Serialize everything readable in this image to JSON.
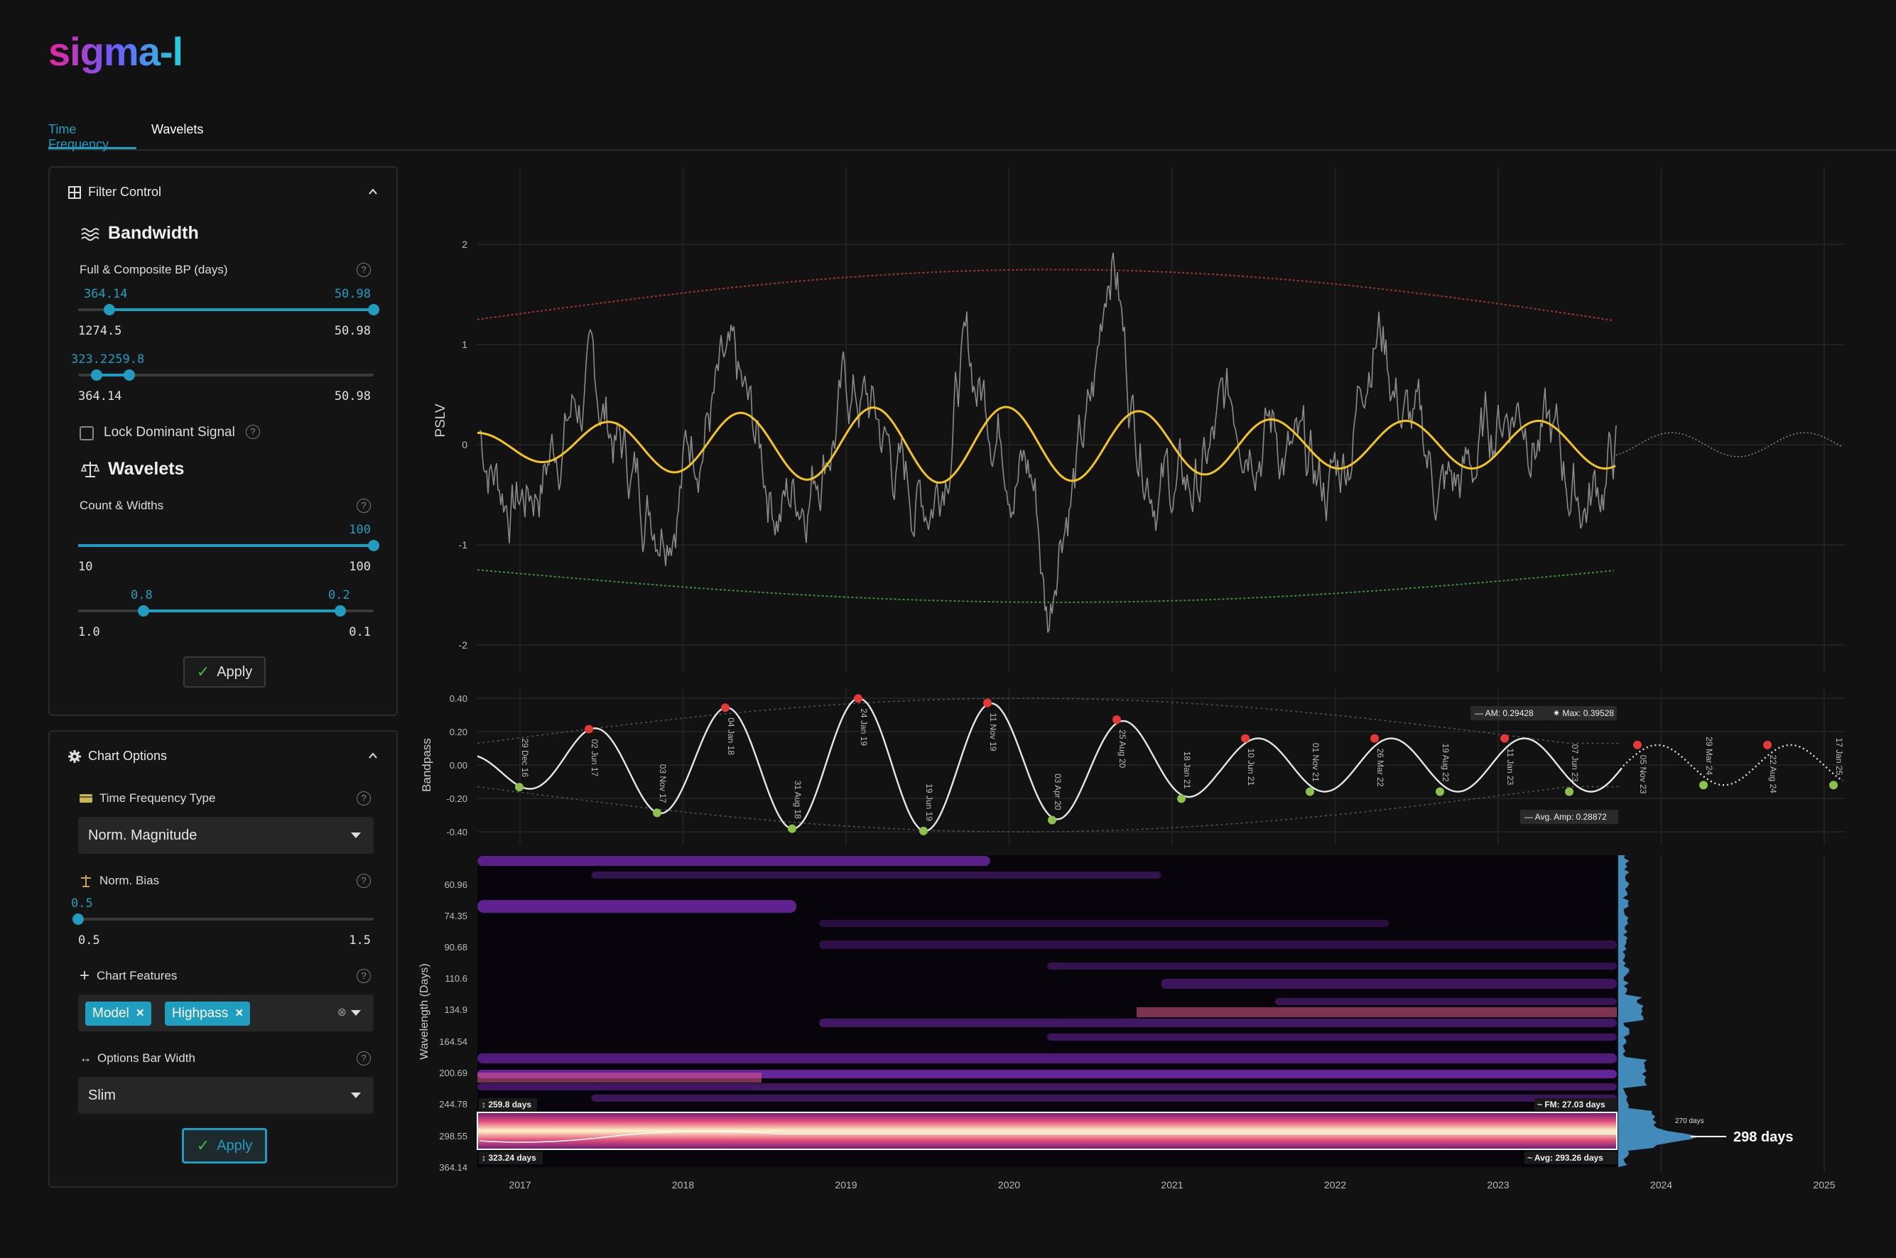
{
  "app": {
    "logo": "sigma-l"
  },
  "tabs": [
    {
      "label": "Time Frequency",
      "active": true
    },
    {
      "label": "Wavelets",
      "active": false
    }
  ],
  "filter_control": {
    "title": "Filter Control",
    "bandwidth": {
      "title": "Bandwidth",
      "label": "Full & Composite BP (days)",
      "slider1": {
        "val_left": "364.14",
        "val_right": "50.98",
        "min": "1274.5",
        "max": "50.98"
      },
      "slider2": {
        "val_left": "323.2",
        "val_right": "259.8",
        "min": "364.14",
        "max": "50.98"
      },
      "lock_label": "Lock Dominant Signal"
    },
    "wavelets": {
      "title": "Wavelets",
      "label": "Count & Widths",
      "slider1": {
        "val": "100",
        "min": "10",
        "max": "100"
      },
      "slider2": {
        "val_left": "0.8",
        "val_right": "0.2",
        "min": "1.0",
        "max": "0.1"
      }
    },
    "apply_label": "Apply"
  },
  "chart_options": {
    "title": "Chart Options",
    "tf_type_label": "Time Frequency Type",
    "tf_type_value": "Norm. Magnitude",
    "norm_bias_label": "Norm. Bias",
    "norm_bias": {
      "val": "0.5",
      "min": "0.5",
      "max": "1.5"
    },
    "features_label": "Chart Features",
    "features": [
      "Model",
      "Highpass"
    ],
    "bar_width_label": "Options Bar Width",
    "bar_width_value": "Slim",
    "apply_label": "Apply"
  },
  "colors": {
    "accent": "#1f9ec0",
    "model": "#f5c518",
    "peak": "#e53935",
    "trough": "#8bc34a",
    "upper_env": "#a33434",
    "lower_env": "#3f8f3f"
  },
  "chart_data": [
    {
      "type": "line",
      "ylabel": "PSLV",
      "yticks": [
        "2",
        "1",
        "0",
        "-1",
        "-2"
      ],
      "ylim": [
        -2.5,
        2.7
      ],
      "series": []
    },
    {
      "type": "line",
      "ylabel": "Bandpass",
      "yticks": [
        "0.40",
        "0.20",
        "0.00",
        "-0.20",
        "-0.40"
      ],
      "ylim": [
        -0.45,
        0.45
      ],
      "peaks": [
        "04 Jan 18",
        "24 Jan 19",
        "11 Nov 19",
        "25 Aug 20",
        "10 Jun 21",
        "26 Mar 22",
        "11 Jan 23",
        "05 Nov 23",
        "22 Aug 24"
      ],
      "troughs": [
        "29 Dec 16",
        "03 Nov 17",
        "31 Aug 18",
        "19 Jun 19",
        "03 Apr 20",
        "18 Jan 21",
        "01 Nov 21",
        "19 Aug 22",
        "07 Jun 23",
        "29 Mar 24",
        "17 Jan 25"
      ],
      "other_labels": [
        "02 Jun 17"
      ],
      "annotations": {
        "am": "AM: 0.29428",
        "max": "Max: 0.39528",
        "avg_amp": "Avg. Amp: 0.28872"
      }
    },
    {
      "type": "heatmap",
      "ylabel": "Wavelength (Days)",
      "yticks": [
        "60.96",
        "74.35",
        "90.68",
        "110.6",
        "134.9",
        "164.54",
        "200.69",
        "244.78",
        "298.55",
        "364.14"
      ],
      "xticks": [
        "2017",
        "2018",
        "2019",
        "2020",
        "2021",
        "2022",
        "2023",
        "2024",
        "2025"
      ],
      "band": {
        "top_label": "259.8 days",
        "bottom_label": "323.24 days",
        "fm_label": "FM: 27.03 days",
        "avg_label": "Avg: 293.26 days"
      },
      "histogram_labels": {
        "small": "270 days",
        "main": "298 days"
      }
    }
  ]
}
